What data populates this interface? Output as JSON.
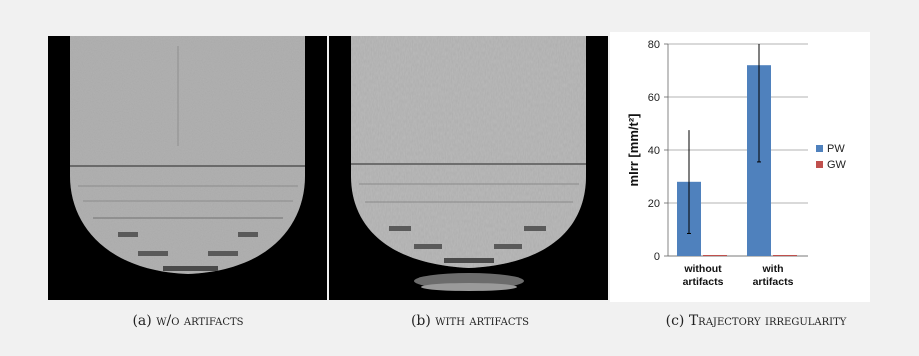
{
  "captions": {
    "a": {
      "label": "(a)",
      "text": "w/o artifacts"
    },
    "b": {
      "label": "(b)",
      "text": "with artifacts"
    },
    "c": {
      "label": "(c)",
      "text": "Trajectory irregularity"
    }
  },
  "chart_data": {
    "type": "bar",
    "categories": [
      "without artifacts",
      "with artifacts"
    ],
    "category_lines": [
      [
        "without",
        "artifacts"
      ],
      [
        "with",
        "artifacts"
      ]
    ],
    "series": [
      {
        "name": "PW",
        "values": [
          28,
          72
        ],
        "error": [
          [
            8.5,
            47.5
          ],
          [
            35.5,
            80
          ]
        ],
        "color": "#4f81bd"
      },
      {
        "name": "GW",
        "values": [
          0.3,
          0.3
        ],
        "color": "#c0504d"
      }
    ],
    "ylabel": "mIrr [mm/t²]",
    "ylim": [
      0,
      80
    ],
    "yticks": [
      0,
      20,
      40,
      60,
      80
    ],
    "grid": true,
    "legend": "right"
  }
}
